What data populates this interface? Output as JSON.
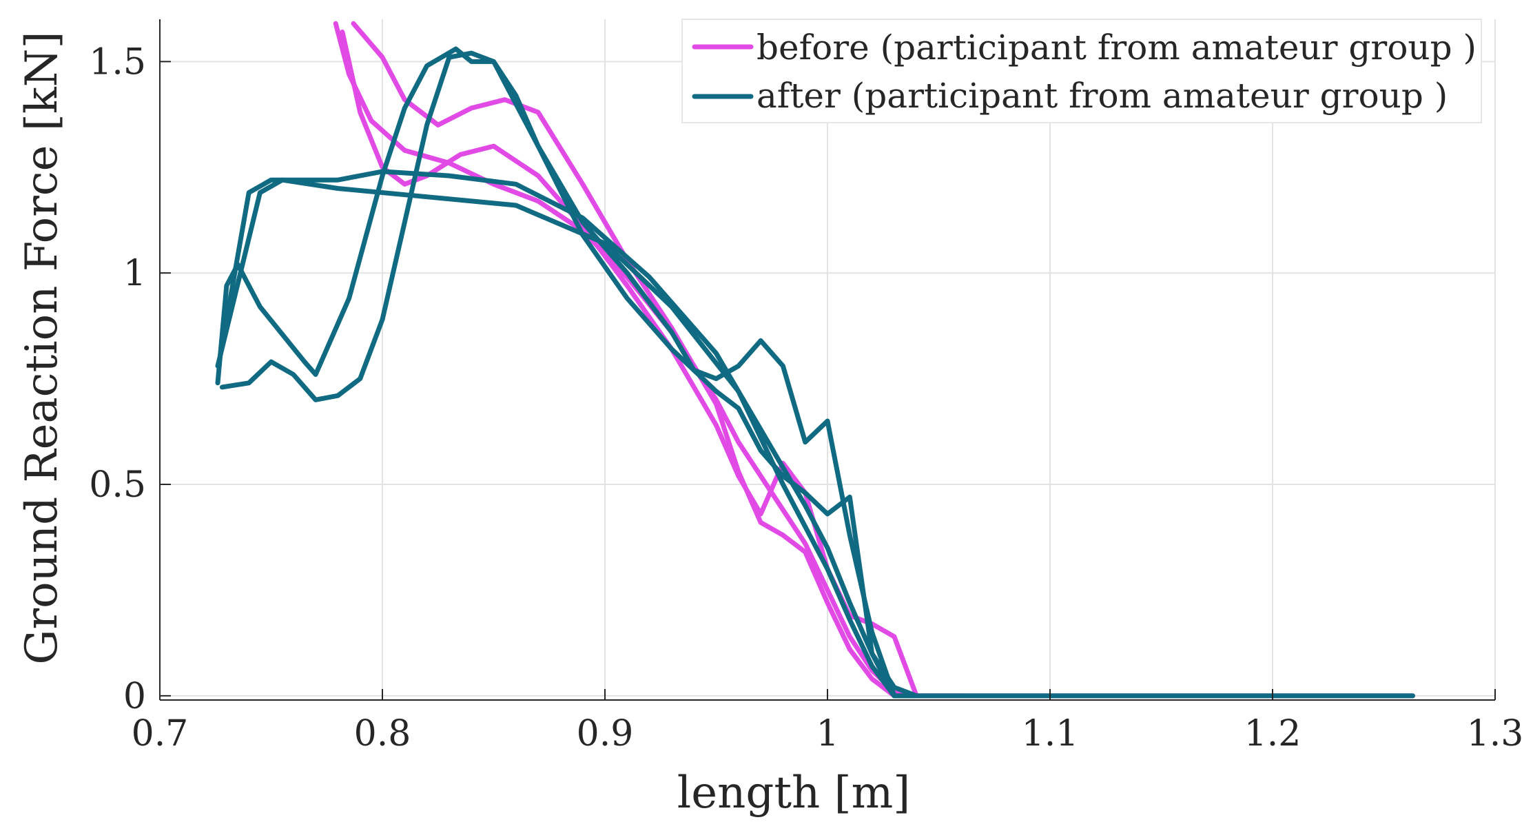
{
  "colors": {
    "before": "#e24ae6",
    "after": "#0f6a82",
    "axis": "#262626",
    "grid": "#e3e3e3",
    "legend_border": "#e6e6e6"
  },
  "chart_data": {
    "type": "line",
    "xlabel": "length [m]",
    "ylabel": "Ground Reaction Force [kN]",
    "xlim": [
      0.7,
      1.3
    ],
    "ylim": [
      -0.01,
      1.6
    ],
    "xticks": [
      0.7,
      0.8,
      0.9,
      1.0,
      1.1,
      1.2,
      1.3
    ],
    "xtick_labels": [
      "0.7",
      "0.8",
      "0.9",
      "1",
      "1.1",
      "1.2",
      "1.3"
    ],
    "yticks": [
      0,
      0.5,
      1.0,
      1.5
    ],
    "ytick_labels": [
      "0",
      "0.5",
      "1",
      "1.5"
    ],
    "grid": true,
    "legend_position": "top-right",
    "legend": [
      {
        "series": "before",
        "label": "before (participant from amateur group )"
      },
      {
        "series": "after",
        "label": "after (participant from amateur group )"
      }
    ],
    "series": [
      {
        "name": "before",
        "trial": 1,
        "x": [
          0.779,
          0.785,
          0.795,
          0.81,
          0.83,
          0.85,
          0.87,
          0.89,
          0.91,
          0.93,
          0.95,
          0.96,
          0.97,
          0.98,
          0.99,
          1.0,
          1.01,
          1.02,
          1.03,
          1.04,
          1.1,
          1.2,
          1.263
        ],
        "y": [
          1.59,
          1.47,
          1.36,
          1.29,
          1.26,
          1.21,
          1.17,
          1.1,
          0.99,
          0.86,
          0.7,
          0.6,
          0.52,
          0.44,
          0.36,
          0.25,
          0.14,
          0.06,
          0.01,
          0.0,
          0.0,
          0.0,
          0.0
        ]
      },
      {
        "name": "before",
        "trial": 2,
        "x": [
          0.782,
          0.79,
          0.8,
          0.81,
          0.82,
          0.835,
          0.85,
          0.87,
          0.89,
          0.91,
          0.93,
          0.95,
          0.96,
          0.97,
          0.98,
          0.99,
          1.0,
          1.01,
          1.02,
          1.03,
          1.04,
          1.06
        ],
        "y": [
          1.57,
          1.38,
          1.25,
          1.21,
          1.23,
          1.28,
          1.3,
          1.23,
          1.11,
          0.97,
          0.82,
          0.64,
          0.52,
          0.43,
          0.55,
          0.48,
          0.3,
          0.19,
          0.17,
          0.14,
          0.0,
          0.0
        ]
      },
      {
        "name": "before",
        "trial": 3,
        "x": [
          0.787,
          0.8,
          0.81,
          0.825,
          0.84,
          0.855,
          0.87,
          0.89,
          0.91,
          0.93,
          0.95,
          0.96,
          0.97,
          0.98,
          0.99,
          1.0,
          1.01,
          1.02,
          1.03,
          1.04
        ],
        "y": [
          1.59,
          1.51,
          1.41,
          1.35,
          1.39,
          1.41,
          1.38,
          1.21,
          1.03,
          0.87,
          0.69,
          0.53,
          0.41,
          0.38,
          0.34,
          0.22,
          0.11,
          0.04,
          0.0,
          0.0
        ]
      },
      {
        "name": "after",
        "trial": 1,
        "x": [
          0.726,
          0.73,
          0.735,
          0.745,
          0.765,
          0.77,
          0.785,
          0.8,
          0.81,
          0.82,
          0.833,
          0.84,
          0.85,
          0.86,
          0.87,
          0.89,
          0.91,
          0.93,
          0.95,
          0.96,
          0.97,
          0.98,
          0.99,
          1.0,
          1.01,
          1.02,
          1.03,
          1.04,
          1.1,
          1.2,
          1.263
        ],
        "y": [
          0.74,
          0.97,
          1.02,
          0.92,
          0.79,
          0.76,
          0.94,
          1.23,
          1.39,
          1.49,
          1.53,
          1.5,
          1.5,
          1.42,
          1.3,
          1.09,
          0.94,
          0.82,
          0.72,
          0.68,
          0.58,
          0.52,
          0.48,
          0.43,
          0.47,
          0.1,
          0.0,
          0.0,
          0.0,
          0.0,
          0.0
        ]
      },
      {
        "name": "after",
        "trial": 2,
        "x": [
          0.728,
          0.74,
          0.75,
          0.76,
          0.77,
          0.78,
          0.79,
          0.8,
          0.81,
          0.82,
          0.83,
          0.84,
          0.85,
          0.87,
          0.89,
          0.91,
          0.93,
          0.94,
          0.95,
          0.96,
          0.97,
          0.98,
          0.99,
          1.0,
          1.01,
          1.02,
          1.03,
          1.04
        ],
        "y": [
          0.73,
          0.74,
          0.79,
          0.76,
          0.7,
          0.71,
          0.75,
          0.89,
          1.12,
          1.35,
          1.51,
          1.52,
          1.5,
          1.3,
          1.12,
          1.0,
          0.86,
          0.77,
          0.75,
          0.78,
          0.84,
          0.78,
          0.6,
          0.65,
          0.38,
          0.15,
          0.0,
          0.0
        ]
      },
      {
        "name": "after",
        "trial": 3,
        "x": [
          0.727,
          0.74,
          0.75,
          0.78,
          0.8,
          0.83,
          0.86,
          0.89,
          0.92,
          0.95,
          0.97,
          0.99,
          1.0,
          1.01,
          1.02,
          1.03,
          1.04
        ],
        "y": [
          0.8,
          1.19,
          1.22,
          1.22,
          1.24,
          1.23,
          1.21,
          1.13,
          0.99,
          0.81,
          0.63,
          0.45,
          0.35,
          0.22,
          0.1,
          0.02,
          0.0
        ]
      },
      {
        "name": "after",
        "trial": 4,
        "x": [
          0.726,
          0.745,
          0.755,
          0.78,
          0.82,
          0.86,
          0.9,
          0.93,
          0.96,
          0.98,
          1.0,
          1.01,
          1.02,
          1.03
        ],
        "y": [
          0.78,
          1.19,
          1.22,
          1.2,
          1.18,
          1.16,
          1.07,
          0.92,
          0.72,
          0.5,
          0.3,
          0.18,
          0.07,
          0.0
        ]
      }
    ]
  }
}
